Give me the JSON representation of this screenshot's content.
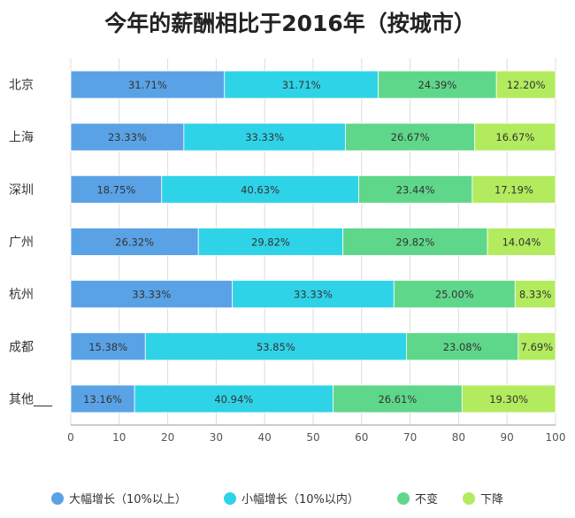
{
  "chart_data": {
    "type": "bar",
    "orientation": "horizontal",
    "stacked": true,
    "title": "今年的薪酬相比于2016年（按城市）",
    "categories": [
      "北京",
      "上海",
      "深圳",
      "广州",
      "杭州",
      "成都",
      "其他___"
    ],
    "series": [
      {
        "name": "大幅增长（10%以上）",
        "color": "#5aa2e6",
        "values": [
          31.71,
          23.33,
          18.75,
          26.32,
          33.33,
          15.38,
          13.16
        ]
      },
      {
        "name": "小幅增长（10%以内）",
        "color": "#2fd3e8",
        "values": [
          31.71,
          33.33,
          40.63,
          29.82,
          33.33,
          53.85,
          40.94
        ]
      },
      {
        "name": "不变",
        "color": "#5fd78a",
        "values": [
          24.39,
          26.67,
          23.44,
          29.82,
          25.0,
          23.08,
          26.61
        ]
      },
      {
        "name": "下降",
        "color": "#b3eb5e",
        "values": [
          12.2,
          16.67,
          17.19,
          14.04,
          8.33,
          7.69,
          19.3
        ]
      }
    ],
    "value_suffix": "%",
    "xlim": [
      0,
      100
    ],
    "xticks": [
      0,
      10,
      20,
      30,
      40,
      50,
      60,
      70,
      80,
      90,
      100
    ],
    "grid": true,
    "legend_position": "bottom"
  }
}
